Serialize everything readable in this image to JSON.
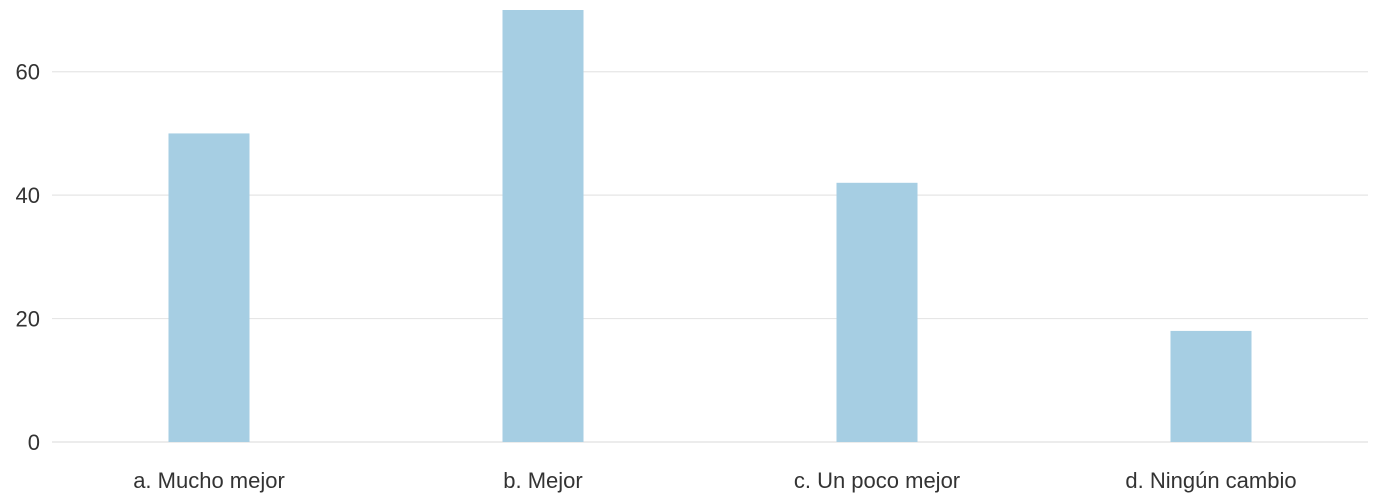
{
  "chart_data": {
    "type": "bar",
    "categories": [
      "a. Mucho mejor",
      "b. Mejor",
      "c. Un poco mejor",
      "d. Ningún cambio"
    ],
    "values": [
      50,
      70,
      42,
      18
    ],
    "ylim": [
      0,
      70
    ],
    "yticks": [
      0,
      20,
      40,
      60
    ],
    "ytick_labels": [
      "0",
      "20",
      "40",
      "60"
    ],
    "grid": true,
    "legend": "none",
    "colors": {
      "bar": "#a6cee3",
      "grid": "#e6e6e6",
      "text": "#333333"
    }
  }
}
